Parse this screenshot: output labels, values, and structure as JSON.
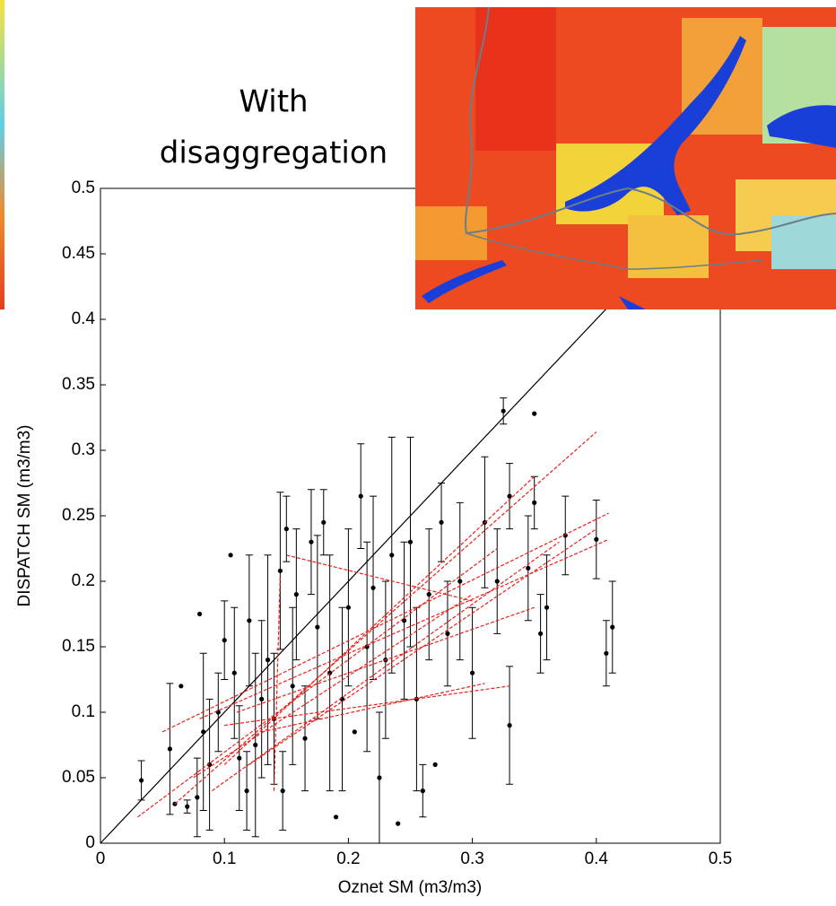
{
  "chart_data": {
    "type": "scatter",
    "annotation": [
      "With",
      "disaggregation"
    ],
    "xlabel": "Oznet SM (m3/m3)",
    "ylabel": "DISPATCH SM (m3/m3)",
    "xlim": [
      0,
      0.5
    ],
    "ylim": [
      0,
      0.5
    ],
    "xticks": [
      0,
      0.1,
      0.2,
      0.3,
      0.4,
      0.5
    ],
    "yticks": [
      0,
      0.05,
      0.1,
      0.15,
      0.2,
      0.25,
      0.3,
      0.35,
      0.4,
      0.45,
      0.5
    ],
    "color": "#000000",
    "fit_color": "#e8211b",
    "identity_color": "#000000",
    "x": [
      0.033,
      0.056,
      0.06,
      0.065,
      0.07,
      0.078,
      0.08,
      0.083,
      0.088,
      0.095,
      0.1,
      0.105,
      0.108,
      0.112,
      0.118,
      0.12,
      0.125,
      0.13,
      0.135,
      0.14,
      0.145,
      0.147,
      0.15,
      0.155,
      0.158,
      0.165,
      0.17,
      0.175,
      0.18,
      0.185,
      0.19,
      0.195,
      0.2,
      0.205,
      0.21,
      0.215,
      0.22,
      0.225,
      0.23,
      0.235,
      0.24,
      0.245,
      0.25,
      0.255,
      0.26,
      0.265,
      0.27,
      0.275,
      0.28,
      0.29,
      0.3,
      0.31,
      0.32,
      0.325,
      0.33,
      0.33,
      0.35,
      0.35,
      0.36,
      0.375,
      0.4,
      0.408,
      0.413,
      0.355,
      0.345
    ],
    "values": [
      0.048,
      0.072,
      0.03,
      0.12,
      0.028,
      0.035,
      0.175,
      0.085,
      0.06,
      0.1,
      0.155,
      0.22,
      0.13,
      0.065,
      0.04,
      0.17,
      0.075,
      0.11,
      0.14,
      0.095,
      0.208,
      0.04,
      0.24,
      0.12,
      0.19,
      0.08,
      0.23,
      0.165,
      0.245,
      0.13,
      0.02,
      0.11,
      0.18,
      0.085,
      0.265,
      0.15,
      0.195,
      0.05,
      0.14,
      0.22,
      0.015,
      0.17,
      0.23,
      0.11,
      0.04,
      0.19,
      0.06,
      0.245,
      0.16,
      0.2,
      0.13,
      0.245,
      0.2,
      0.33,
      0.09,
      0.265,
      0.328,
      0.26,
      0.18,
      0.235,
      0.232,
      0.145,
      0.165,
      0.16,
      0.21
    ],
    "errors": [
      0.015,
      0.05,
      null,
      null,
      0.005,
      0.03,
      null,
      0.06,
      0.05,
      0.03,
      0.03,
      null,
      0.05,
      0.04,
      0.03,
      0.05,
      0.07,
      0.06,
      0.08,
      0.05,
      0.06,
      0.03,
      0.025,
      0.06,
      0.05,
      0.04,
      0.04,
      0.07,
      0.025,
      0.09,
      null,
      0.07,
      0.06,
      null,
      0.04,
      0.08,
      0.07,
      0.05,
      0.06,
      0.09,
      null,
      0.06,
      0.08,
      0.07,
      0.02,
      0.05,
      null,
      0.03,
      0.04,
      0.06,
      0.05,
      0.05,
      0.04,
      0.01,
      0.045,
      0.025,
      null,
      0.02,
      0.04,
      0.03,
      0.03,
      0.025,
      0.035,
      0.03,
      0.04
    ],
    "fits": [
      {
        "x": [
          0.03,
          0.32
        ],
        "values": [
          0.02,
          0.225
        ]
      },
      {
        "x": [
          0.05,
          0.41
        ],
        "values": [
          0.085,
          0.252
        ]
      },
      {
        "x": [
          0.06,
          0.4
        ],
        "values": [
          0.03,
          0.314
        ]
      },
      {
        "x": [
          0.08,
          0.41
        ],
        "values": [
          0.095,
          0.232
        ]
      },
      {
        "x": [
          0.1,
          0.35
        ],
        "values": [
          0.06,
          0.28
        ]
      },
      {
        "x": [
          0.12,
          0.4
        ],
        "values": [
          0.06,
          0.24
        ]
      },
      {
        "x": [
          0.15,
          0.3
        ],
        "values": [
          0.22,
          0.185
        ]
      },
      {
        "x": [
          0.1,
          0.33
        ],
        "values": [
          0.09,
          0.12
        ]
      },
      {
        "x": [
          0.13,
          0.31
        ],
        "values": [
          0.085,
          0.122
        ]
      },
      {
        "x": [
          0.075,
          0.3
        ],
        "values": [
          0.05,
          0.19
        ]
      },
      {
        "x": [
          0.14,
          0.145
        ],
        "values": [
          0.04,
          0.205
        ]
      },
      {
        "x": [
          0.09,
          0.37
        ],
        "values": [
          0.04,
          0.23
        ]
      },
      {
        "x": [
          0.11,
          0.35
        ],
        "values": [
          0.1,
          0.18
        ]
      }
    ]
  }
}
